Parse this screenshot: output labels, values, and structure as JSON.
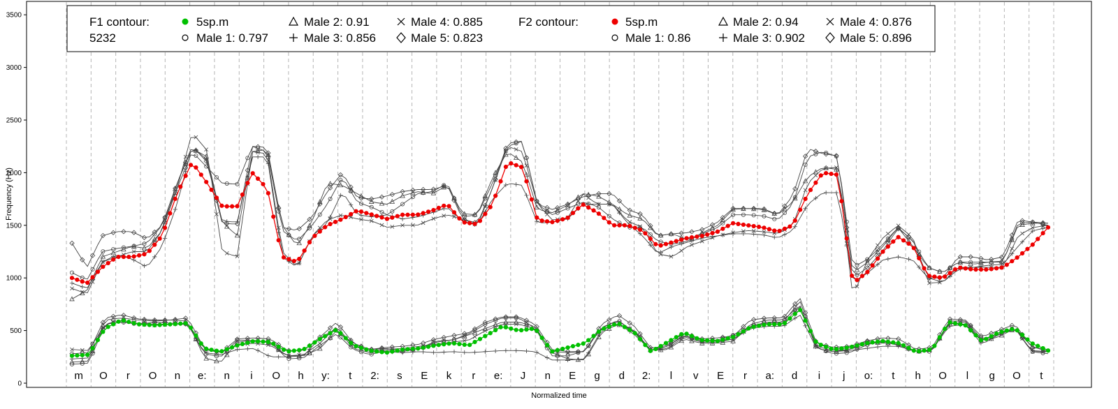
{
  "chart_data": {
    "type": "line",
    "title": "",
    "xlabel": "Normalized time",
    "ylabel": "Frequency (Hz)",
    "ylim": [
      0,
      3600
    ],
    "yticks": [
      0,
      500,
      1000,
      1500,
      2000,
      2500,
      3000,
      3500
    ],
    "grid": "vertical dashed segment boundaries",
    "legend_position": "top-left",
    "segments": [
      "m",
      "O",
      "r",
      "O",
      "n",
      "e:",
      "n",
      "i",
      "O",
      "h",
      "y:",
      "t",
      "2:",
      "s",
      "E",
      "k",
      "r",
      "e:",
      "J",
      "n",
      "E",
      "g",
      "d",
      "2:",
      "l",
      "v",
      "E",
      "r",
      "a:",
      "d",
      "i",
      "j",
      "o:",
      "t",
      "h",
      "O",
      "l",
      "g",
      "O",
      "t"
    ],
    "legend": {
      "f1_title": "F1 contour:",
      "f1_note": "5232",
      "f2_title": "F2 contour:",
      "f1_entries": [
        "5sp.m",
        "Male 1: 0.797",
        "Male 2: 0.91",
        "Male 3: 0.856",
        "Male 4: 0.885",
        "Male 5: 0.823"
      ],
      "f2_entries": [
        "5sp.m",
        "Male 1: 0.86",
        "Male 2: 0.94",
        "Male 3: 0.902",
        "Male 4: 0.876",
        "Male 5: 0.896"
      ]
    },
    "colors": {
      "f1_mean": "#00c000",
      "f2_mean": "#ee0000",
      "speakers": "#444444",
      "grid": "#b4b4b4"
    },
    "f1_series": [
      {
        "name": "5sp.m",
        "marker": "filled-circle",
        "values": [
          260,
          270,
          520,
          600,
          560,
          550,
          560,
          570,
          330,
          300,
          360,
          400,
          390,
          300,
          320,
          420,
          510,
          360,
          310,
          290,
          320,
          330,
          360,
          380,
          360,
          450,
          540,
          500,
          520,
          300,
          340,
          380,
          510,
          570,
          480,
          300,
          390,
          480,
          410,
          400,
          440,
          530,
          560,
          560,
          700,
          380,
          320,
          340,
          380,
          400,
          380,
          300,
          320,
          580,
          550,
          400,
          480,
          520,
          380,
          310
        ]
      },
      {
        "name": "Male 1",
        "marker": "open-circle",
        "values": [
          180,
          190,
          560,
          580,
          560,
          580,
          570,
          560,
          280,
          250,
          410,
          400,
          400,
          230,
          240,
          360,
          470,
          320,
          270,
          310,
          300,
          330,
          400,
          410,
          470,
          560,
          620,
          620,
          520,
          260,
          260,
          310,
          520,
          600,
          480,
          310,
          350,
          450,
          400,
          410,
          460,
          540,
          580,
          580,
          780,
          340,
          280,
          290,
          360,
          410,
          360,
          300,
          300,
          590,
          590,
          420,
          460,
          530,
          300,
          280
        ]
      },
      {
        "name": "Male 2",
        "marker": "open-triangle",
        "values": [
          200,
          210,
          600,
          620,
          600,
          590,
          600,
          590,
          240,
          200,
          390,
          410,
          380,
          260,
          260,
          330,
          500,
          380,
          320,
          330,
          310,
          330,
          390,
          410,
          460,
          520,
          580,
          580,
          540,
          290,
          230,
          220,
          480,
          560,
          500,
          310,
          320,
          420,
          380,
          380,
          400,
          560,
          600,
          600,
          740,
          330,
          300,
          320,
          400,
          380,
          380,
          300,
          320,
          560,
          580,
          400,
          440,
          520,
          350,
          300
        ]
      },
      {
        "name": "Male 3",
        "marker": "plus",
        "values": [
          230,
          240,
          560,
          580,
          570,
          560,
          560,
          560,
          290,
          270,
          320,
          330,
          250,
          250,
          260,
          430,
          520,
          330,
          290,
          300,
          290,
          300,
          290,
          300,
          290,
          300,
          310,
          310,
          300,
          220,
          220,
          230,
          500,
          570,
          460,
          310,
          330,
          440,
          390,
          390,
          420,
          520,
          540,
          540,
          650,
          330,
          300,
          310,
          330,
          350,
          350,
          300,
          320,
          540,
          560,
          370,
          460,
          520,
          310,
          300
        ]
      },
      {
        "name": "Male 4",
        "marker": "cross",
        "values": [
          320,
          310,
          560,
          600,
          560,
          550,
          560,
          570,
          320,
          290,
          360,
          380,
          360,
          260,
          270,
          380,
          540,
          350,
          310,
          320,
          330,
          350,
          370,
          390,
          410,
          500,
          560,
          560,
          520,
          300,
          290,
          300,
          530,
          590,
          490,
          310,
          350,
          460,
          400,
          400,
          420,
          540,
          570,
          570,
          730,
          350,
          310,
          320,
          370,
          390,
          360,
          300,
          310,
          570,
          560,
          410,
          460,
          520,
          300,
          300
        ]
      },
      {
        "name": "Male 5",
        "marker": "open-diamond",
        "values": [
          280,
          290,
          620,
          650,
          610,
          600,
          600,
          620,
          330,
          290,
          420,
          430,
          420,
          310,
          310,
          440,
          580,
          380,
          320,
          340,
          350,
          370,
          420,
          450,
          480,
          580,
          630,
          630,
          560,
          320,
          300,
          300,
          560,
          650,
          540,
          330,
          360,
          480,
          420,
          430,
          450,
          600,
          620,
          620,
          810,
          380,
          340,
          350,
          400,
          430,
          420,
          320,
          340,
          610,
          600,
          440,
          500,
          560,
          340,
          320
        ]
      }
    ],
    "f2_series": [
      {
        "name": "5sp.m",
        "marker": "filled-circle",
        "values": [
          1000,
          950,
          1100,
          1200,
          1200,
          1230,
          1400,
          1800,
          2100,
          1900,
          1680,
          1680,
          2000,
          1850,
          1200,
          1150,
          1380,
          1500,
          1560,
          1640,
          1600,
          1560,
          1600,
          1600,
          1640,
          1700,
          1530,
          1510,
          1700,
          2100,
          2050,
          1550,
          1530,
          1570,
          1700,
          1620,
          1500,
          1500,
          1450,
          1300,
          1340,
          1380,
          1400,
          1440,
          1520,
          1500,
          1480,
          1440,
          1500,
          1800,
          2000,
          1980,
          950,
          1060,
          1250,
          1390,
          1300,
          1020,
          1000,
          1100,
          1080,
          1080,
          1100,
          1200,
          1320,
          1480
        ]
      },
      {
        "name": "Male 1",
        "marker": "open-circle",
        "values": [
          1050,
          980,
          1250,
          1280,
          1300,
          1330,
          1500,
          1850,
          2200,
          2050,
          1900,
          1890,
          2250,
          2200,
          1450,
          1350,
          1500,
          1700,
          1960,
          1720,
          1670,
          1600,
          1700,
          1800,
          1820,
          1900,
          1580,
          1600,
          1900,
          2250,
          2300,
          1700,
          1600,
          1660,
          1720,
          1680,
          1560,
          1480,
          1480,
          1350,
          1320,
          1350,
          1420,
          1480,
          1600,
          1600,
          1590,
          1550,
          1700,
          2150,
          2200,
          2150,
          1100,
          1180,
          1320,
          1480,
          1350,
          1100,
          1050,
          1150,
          1150,
          1150,
          1150,
          1520,
          1530,
          1500
        ]
      },
      {
        "name": "Male 2",
        "marker": "open-triangle",
        "values": [
          800,
          880,
          1200,
          1250,
          1300,
          1280,
          1450,
          1900,
          2230,
          2150,
          1530,
          1400,
          2200,
          2220,
          1500,
          1300,
          1540,
          1900,
          1880,
          1800,
          1720,
          1700,
          1780,
          1820,
          1800,
          1880,
          1610,
          1600,
          1950,
          2200,
          2100,
          1650,
          1620,
          1690,
          1800,
          1780,
          1700,
          1600,
          1560,
          1400,
          1420,
          1360,
          1430,
          1500,
          1650,
          1660,
          1650,
          1600,
          1720,
          1960,
          2050,
          2030,
          1050,
          1150,
          1300,
          1480,
          1300,
          1100,
          1050,
          1150,
          1130,
          1150,
          1160,
          1500,
          1520,
          1520
        ]
      },
      {
        "name": "Male 3",
        "marker": "plus",
        "values": [
          950,
          900,
          1150,
          1220,
          1180,
          1100,
          1300,
          1700,
          2250,
          2120,
          1540,
          1530,
          2150,
          2150,
          1200,
          1100,
          1400,
          1520,
          1820,
          1600,
          1580,
          1600,
          1560,
          1580,
          1620,
          1670,
          1540,
          1500,
          1750,
          1900,
          1880,
          1520,
          1530,
          1560,
          1700,
          1700,
          1700,
          1520,
          1400,
          1230,
          1300,
          1340,
          1380,
          1400,
          1420,
          1420,
          1410,
          1380,
          1450,
          1700,
          1810,
          1810,
          950,
          1050,
          1170,
          1200,
          1170,
          1000,
          960,
          1080,
          1100,
          1120,
          1130,
          1300,
          1450,
          1480
        ]
      },
      {
        "name": "Male 4",
        "marker": "cross",
        "values": [
          900,
          850,
          1150,
          1200,
          1250,
          1250,
          1450,
          1850,
          2380,
          2210,
          1250,
          1200,
          2200,
          2180,
          1250,
          1100,
          1400,
          1550,
          1600,
          1560,
          1540,
          1480,
          1500,
          1500,
          1560,
          1600,
          1560,
          1500,
          1850,
          2250,
          2200,
          1700,
          1550,
          1570,
          1800,
          1700,
          1700,
          1540,
          1480,
          1230,
          1200,
          1300,
          1350,
          1400,
          1430,
          1450,
          1440,
          1420,
          1500,
          1900,
          2040,
          2050,
          820,
          1180,
          1380,
          1500,
          1380,
          950,
          960,
          1100,
          1100,
          1100,
          1100,
          1400,
          1480,
          1500
        ]
      },
      {
        "name": "Male 5",
        "marker": "open-diamond",
        "values": [
          1330,
          1100,
          1400,
          1440,
          1440,
          1370,
          1500,
          1900,
          2250,
          2100,
          1520,
          1510,
          2250,
          2240,
          1480,
          1450,
          1580,
          1820,
          2000,
          1760,
          1750,
          1780,
          1820,
          1840,
          1840,
          1880,
          1560,
          1520,
          1850,
          2280,
          2300,
          1700,
          1650,
          1700,
          1770,
          1800,
          1800,
          1650,
          1600,
          1400,
          1420,
          1430,
          1460,
          1530,
          1660,
          1660,
          1660,
          1600,
          1780,
          2230,
          2180,
          2160,
          1000,
          1100,
          1260,
          1470,
          1360,
          1000,
          1000,
          1200,
          1200,
          1170,
          1200,
          1550,
          1530,
          1520
        ]
      }
    ]
  }
}
